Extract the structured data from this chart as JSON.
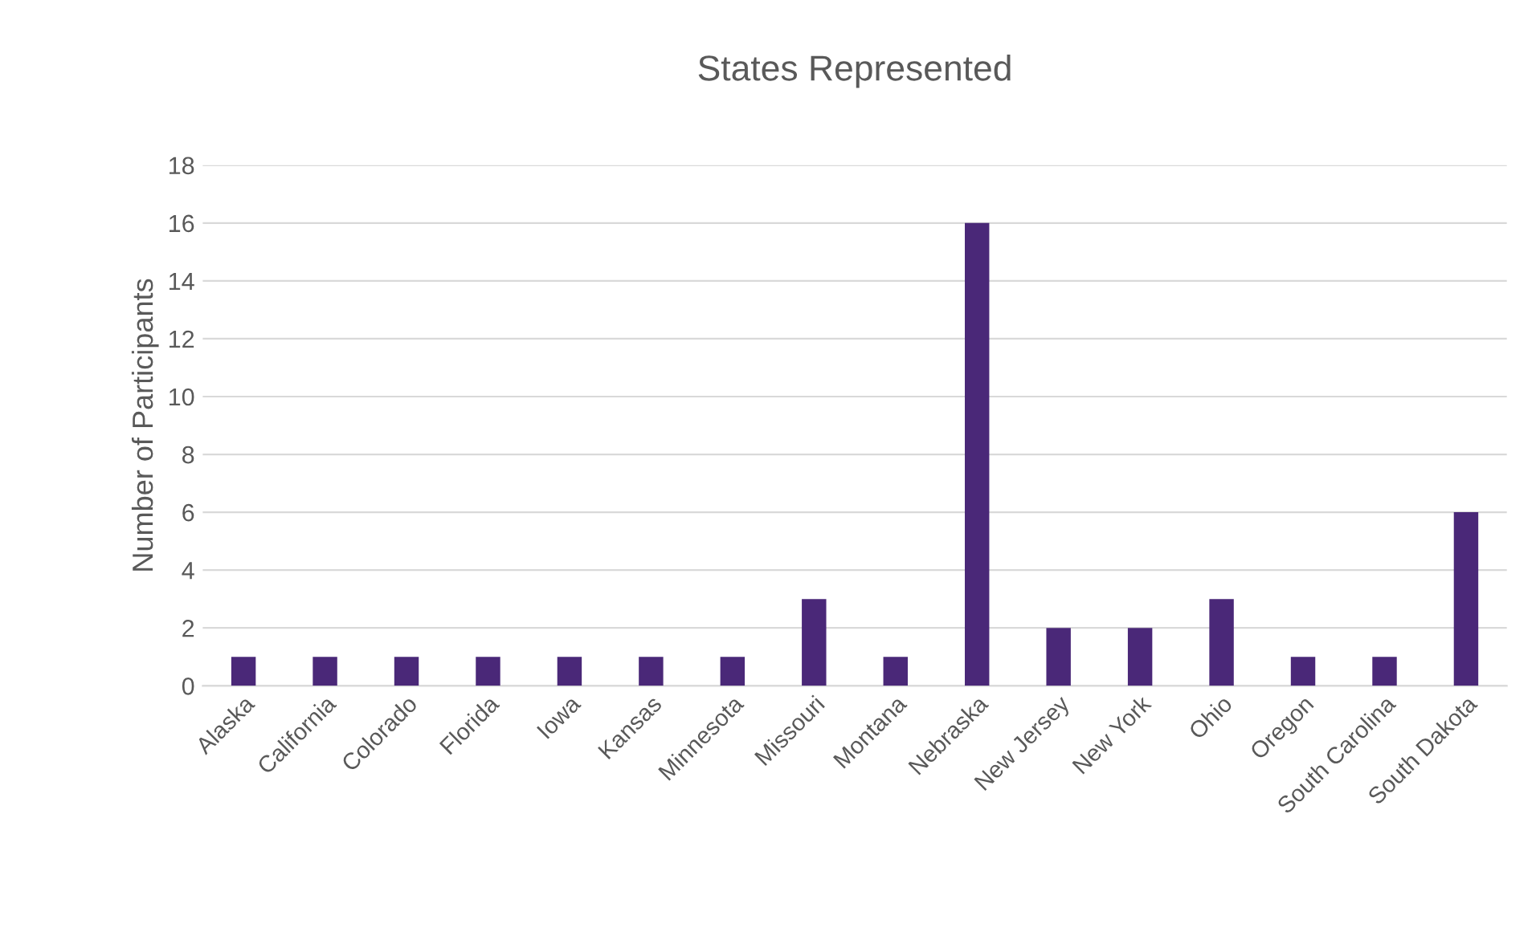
{
  "chart_data": {
    "type": "bar",
    "title": "States Represented",
    "ylabel": "Number of Participants",
    "categories": [
      "Alaska",
      "California",
      "Colorado",
      "Florida",
      "Iowa",
      "Kansas",
      "Minnesota",
      "Missouri",
      "Montana",
      "Nebraska",
      "New Jersey",
      "New York",
      "Ohio",
      "Oregon",
      "South Carolina",
      "South Dakota"
    ],
    "values": [
      1,
      1,
      1,
      1,
      1,
      1,
      1,
      3,
      1,
      16,
      2,
      2,
      3,
      1,
      1,
      6
    ],
    "color": "#4a2878",
    "ylim": [
      0,
      18
    ],
    "yticks": [
      0,
      2,
      4,
      6,
      8,
      10,
      12,
      14,
      16,
      18
    ],
    "grid": "y",
    "legend": false
  }
}
